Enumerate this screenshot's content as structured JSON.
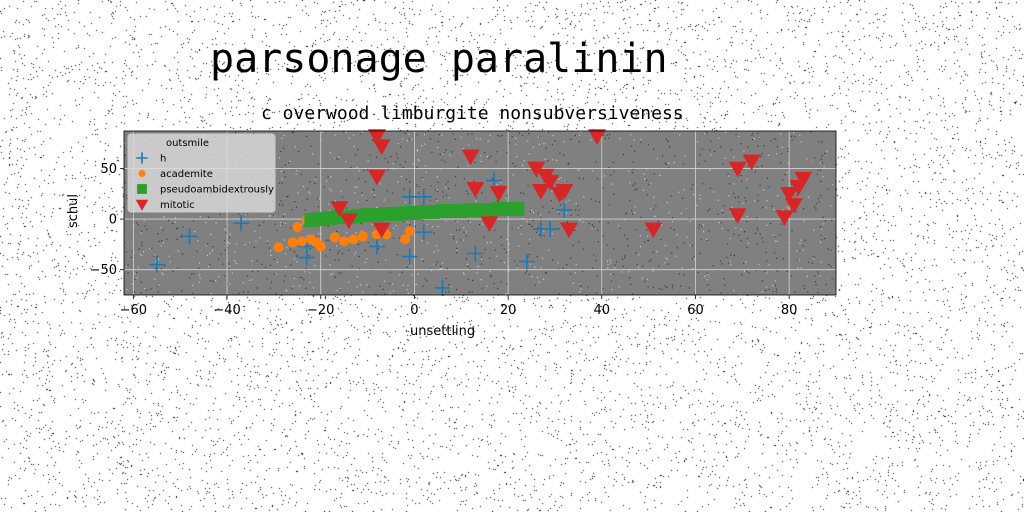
{
  "page": {
    "title": "parsonage paralinin",
    "subtitle": "c overwood limburgite nonsubversiveness"
  },
  "chart_data": {
    "type": "scatter",
    "xlabel": "unsettling",
    "ylabel": "schul",
    "xlim": [
      -62,
      90
    ],
    "ylim": [
      -75,
      87
    ],
    "xticks": [
      -60,
      -40,
      -20,
      0,
      20,
      40,
      60,
      80
    ],
    "yticks": [
      -50,
      0,
      50
    ],
    "grid": true,
    "background_color": "#808080",
    "legend": {
      "title": "outsmile",
      "placement": "top-left"
    },
    "series": [
      {
        "name": "h",
        "marker": "plus",
        "color": "#1f77b4",
        "points": [
          [
            -55,
            -45
          ],
          [
            -48,
            -17
          ],
          [
            -37,
            -4
          ],
          [
            -23,
            -27
          ],
          [
            -23,
            -38
          ],
          [
            -8,
            -27
          ],
          [
            -1,
            -37
          ],
          [
            -1,
            22
          ],
          [
            2,
            22
          ],
          [
            2,
            -13
          ],
          [
            6,
            -68
          ],
          [
            13,
            -34
          ],
          [
            17,
            38
          ],
          [
            24,
            -42
          ],
          [
            27,
            -10
          ],
          [
            29,
            -10
          ],
          [
            32,
            9
          ]
        ]
      },
      {
        "name": "academite",
        "marker": "circle",
        "color": "#ff7f0e",
        "points": [
          [
            -29,
            -28
          ],
          [
            -26,
            -23
          ],
          [
            -25,
            -8
          ],
          [
            -24,
            -22
          ],
          [
            -23,
            -1
          ],
          [
            -22,
            -20
          ],
          [
            -21,
            -23
          ],
          [
            -20,
            -27
          ],
          [
            -17,
            -18
          ],
          [
            -15,
            -22
          ],
          [
            -13,
            -20
          ],
          [
            -11,
            -17
          ],
          [
            -8,
            -15
          ],
          [
            -6,
            -15
          ],
          [
            -2,
            -20
          ],
          [
            -1,
            -12
          ]
        ]
      },
      {
        "name": "pseudoambidextrously",
        "marker": "square",
        "color": "#2ca02c",
        "points": [
          [
            -22,
            -1
          ],
          [
            -20,
            0
          ],
          [
            -18,
            1
          ],
          [
            -16,
            2
          ],
          [
            -14,
            2
          ],
          [
            -12,
            3
          ],
          [
            -10,
            4
          ],
          [
            -8,
            4
          ],
          [
            -6,
            5
          ],
          [
            -4,
            5
          ],
          [
            -2,
            6
          ],
          [
            0,
            6
          ],
          [
            2,
            7
          ],
          [
            4,
            7
          ],
          [
            6,
            8
          ],
          [
            8,
            8
          ],
          [
            10,
            8
          ],
          [
            12,
            9
          ],
          [
            14,
            9
          ],
          [
            16,
            9
          ],
          [
            18,
            10
          ],
          [
            20,
            10
          ],
          [
            22,
            10
          ]
        ]
      },
      {
        "name": "mitotic",
        "marker": "triangle-down",
        "color": "#d62728",
        "points": [
          [
            -16,
            11
          ],
          [
            -14,
            -1
          ],
          [
            -8,
            82
          ],
          [
            -7,
            72
          ],
          [
            -8,
            42
          ],
          [
            -7,
            -10
          ],
          [
            12,
            62
          ],
          [
            13,
            30
          ],
          [
            16,
            -4
          ],
          [
            18,
            26
          ],
          [
            26,
            50
          ],
          [
            27,
            28
          ],
          [
            28,
            43
          ],
          [
            29,
            37
          ],
          [
            31,
            25
          ],
          [
            32,
            28
          ],
          [
            33,
            -10
          ],
          [
            39,
            82
          ],
          [
            51,
            -10
          ],
          [
            69,
            50
          ],
          [
            69,
            4
          ],
          [
            72,
            57
          ],
          [
            79,
            2
          ],
          [
            80,
            25
          ],
          [
            81,
            14
          ],
          [
            82,
            32
          ],
          [
            83,
            40
          ]
        ]
      }
    ]
  }
}
